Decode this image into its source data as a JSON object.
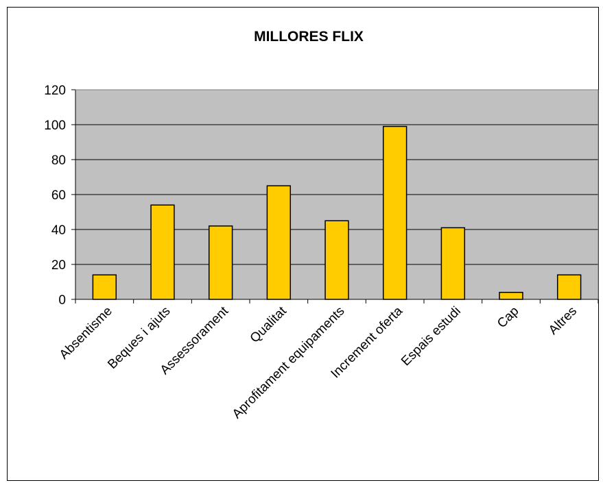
{
  "chart_data": {
    "type": "bar",
    "title": "MILLORES FLIX",
    "xlabel": "",
    "ylabel": "",
    "categories": [
      "Absentisme",
      "Beques i ajuts",
      "Assessorament",
      "Qualitat",
      "Aprofitament equipaments",
      "Increment oferta",
      "Espais estudi",
      "Cap",
      "Altres"
    ],
    "values": [
      14,
      54,
      42,
      65,
      45,
      99,
      41,
      4,
      14
    ],
    "ylim": [
      0,
      120
    ],
    "yticks": [
      "0",
      "20",
      "40",
      "60",
      "80",
      "100",
      "120"
    ],
    "grid": true,
    "legend": "none",
    "colors": {
      "plot_background": "#c0c0c0",
      "bar_fill": "#ffcc00",
      "bar_stroke": "#000000",
      "gridline": "#000000",
      "text": "#000000"
    }
  }
}
